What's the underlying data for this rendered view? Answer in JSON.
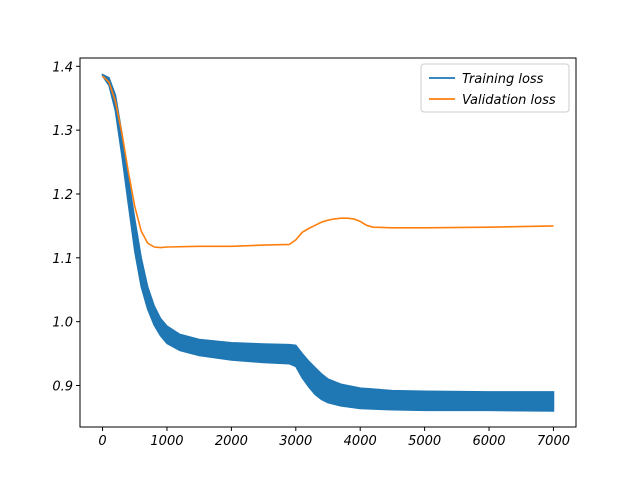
{
  "chart_data": {
    "type": "line",
    "title": "",
    "xlabel": "",
    "ylabel": "",
    "xlim": [
      -350,
      7350
    ],
    "ylim": [
      0.835,
      1.413
    ],
    "xticks": [
      0,
      1000,
      2000,
      3000,
      4000,
      5000,
      6000,
      7000
    ],
    "yticks": [
      0.9,
      1.0,
      1.1,
      1.2,
      1.3,
      1.4
    ],
    "legend": {
      "position": "top-right"
    },
    "grid": false,
    "series": [
      {
        "name": "Training loss",
        "color": "#1f77b4",
        "band": true,
        "x": [
          0,
          100,
          200,
          300,
          400,
          500,
          600,
          700,
          800,
          900,
          1000,
          1200,
          1500,
          2000,
          2500,
          2900,
          3000,
          3100,
          3200,
          3300,
          3400,
          3500,
          3700,
          4000,
          4500,
          5000,
          6000,
          7000
        ],
        "upper": [
          1.387,
          1.382,
          1.355,
          1.295,
          1.225,
          1.16,
          1.1,
          1.055,
          1.025,
          1.005,
          0.993,
          0.98,
          0.972,
          0.967,
          0.965,
          0.964,
          0.963,
          0.95,
          0.938,
          0.928,
          0.918,
          0.91,
          0.902,
          0.896,
          0.892,
          0.891,
          0.89,
          0.89
        ],
        "lower": [
          1.385,
          1.37,
          1.33,
          1.26,
          1.185,
          1.11,
          1.055,
          1.02,
          0.995,
          0.978,
          0.966,
          0.955,
          0.947,
          0.94,
          0.936,
          0.934,
          0.93,
          0.912,
          0.898,
          0.886,
          0.878,
          0.873,
          0.868,
          0.864,
          0.862,
          0.861,
          0.861,
          0.86
        ]
      },
      {
        "name": "Validation loss",
        "color": "#ff7f0e",
        "x": [
          0,
          100,
          200,
          300,
          400,
          500,
          600,
          700,
          800,
          900,
          1000,
          1500,
          2000,
          2500,
          2900,
          3000,
          3100,
          3200,
          3300,
          3400,
          3500,
          3600,
          3700,
          3800,
          3900,
          4000,
          4100,
          4200,
          4500,
          5000,
          6000,
          7000
        ],
        "y": [
          1.385,
          1.375,
          1.345,
          1.295,
          1.235,
          1.18,
          1.142,
          1.123,
          1.117,
          1.116,
          1.117,
          1.118,
          1.118,
          1.12,
          1.121,
          1.128,
          1.14,
          1.146,
          1.151,
          1.156,
          1.159,
          1.161,
          1.162,
          1.162,
          1.161,
          1.157,
          1.151,
          1.148,
          1.147,
          1.147,
          1.148,
          1.15
        ]
      }
    ]
  }
}
